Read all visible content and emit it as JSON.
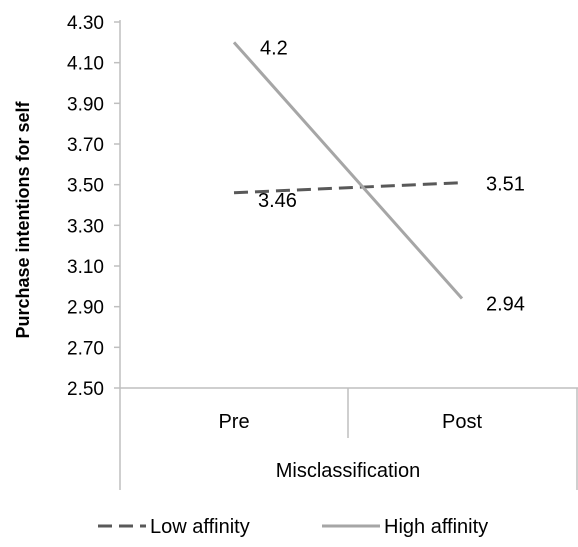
{
  "chart_data": {
    "type": "line",
    "categories": [
      "Pre",
      "Post"
    ],
    "group_label": "Misclassification",
    "ylabel": "Purchase intentions for self",
    "xlabel": "",
    "ylim": [
      2.5,
      4.3
    ],
    "yticks": [
      "2.50",
      "2.70",
      "2.90",
      "3.10",
      "3.30",
      "3.50",
      "3.70",
      "3.90",
      "4.10",
      "4.30"
    ],
    "grid": false,
    "legend_position": "bottom",
    "series": [
      {
        "name": "Low affinity",
        "values": [
          3.46,
          3.51
        ],
        "labels": [
          "3.46",
          "3.51"
        ],
        "color": "#595959",
        "style": "dashed"
      },
      {
        "name": "High affinity",
        "values": [
          4.2,
          2.94
        ],
        "labels": [
          "4.2",
          "2.94"
        ],
        "color": "#a6a6a6",
        "style": "solid"
      }
    ]
  }
}
